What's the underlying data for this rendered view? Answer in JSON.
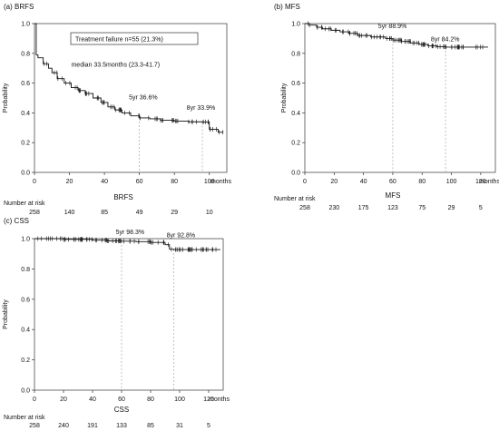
{
  "chart_data": [
    {
      "type": "line",
      "panel_label": "(a) BRFS",
      "xlabel": "BRFS",
      "x_unit": "months",
      "ylabel": "Probability",
      "xlim": [
        0,
        110
      ],
      "ylim": [
        0,
        1.0
      ],
      "xticks": [
        0,
        20,
        40,
        60,
        80,
        100
      ],
      "yticks": [
        0.0,
        0.2,
        0.4,
        0.6,
        0.8,
        1.0
      ],
      "box_text": "Treatment failure n=55   (21.3%)",
      "annotations": [
        {
          "text": "median 33.5months (23.3-41.7)",
          "x": 21,
          "y": 0.71
        },
        {
          "text": "5yr 36.6%",
          "x": 54,
          "y": 0.49
        },
        {
          "text": "8yr 33.9%",
          "x": 87,
          "y": 0.42
        }
      ],
      "reference_lines_x": [
        60,
        96
      ],
      "series": [
        {
          "x": [
            0,
            1,
            2,
            5,
            8,
            10,
            13,
            17,
            21,
            25,
            29,
            33.5,
            38,
            42,
            46,
            50,
            55,
            60,
            66,
            72,
            80,
            88,
            96,
            100,
            105,
            108
          ],
          "y": [
            1.0,
            0.79,
            0.77,
            0.73,
            0.7,
            0.67,
            0.63,
            0.6,
            0.57,
            0.55,
            0.53,
            0.5,
            0.47,
            0.44,
            0.42,
            0.4,
            0.38,
            0.366,
            0.36,
            0.35,
            0.345,
            0.34,
            0.339,
            0.29,
            0.27,
            0.27
          ]
        }
      ],
      "risk_label": "Number at risk",
      "risk_x": [
        0,
        20,
        40,
        60,
        80,
        100
      ],
      "risk": [
        "258",
        "140",
        "85",
        "49",
        "29",
        "10"
      ]
    },
    {
      "type": "line",
      "panel_label": "(b) MFS",
      "xlabel": "MFS",
      "x_unit": "months",
      "ylabel": "Probability",
      "xlim": [
        0,
        130
      ],
      "ylim": [
        0,
        1.0
      ],
      "xticks": [
        0,
        20,
        40,
        60,
        80,
        100,
        120
      ],
      "yticks": [
        0.0,
        0.2,
        0.4,
        0.6,
        0.8,
        1.0
      ],
      "annotations": [
        {
          "text": "5yr 88.9%",
          "x": 50,
          "y": 0.97
        },
        {
          "text": "8yr 84.2%",
          "x": 86,
          "y": 0.88
        }
      ],
      "reference_lines_x": [
        60,
        96
      ],
      "series": [
        {
          "x": [
            0,
            3,
            8,
            12,
            18,
            24,
            30,
            36,
            45,
            55,
            60,
            66,
            72,
            78,
            84,
            90,
            96,
            110,
            125
          ],
          "y": [
            1.0,
            0.99,
            0.975,
            0.965,
            0.955,
            0.945,
            0.935,
            0.92,
            0.91,
            0.9,
            0.889,
            0.88,
            0.87,
            0.86,
            0.85,
            0.845,
            0.842,
            0.842,
            0.842
          ]
        }
      ],
      "risk_label": "Number at risk",
      "risk_x": [
        0,
        20,
        40,
        60,
        80,
        100,
        120
      ],
      "risk": [
        "258",
        "230",
        "175",
        "123",
        "75",
        "29",
        "5"
      ]
    },
    {
      "type": "line",
      "panel_label": "(c) CSS",
      "xlabel": "CSS",
      "x_unit": "months",
      "ylabel": "Probability",
      "xlim": [
        0,
        130
      ],
      "ylim": [
        0,
        1.0
      ],
      "xticks": [
        0,
        20,
        40,
        60,
        80,
        100,
        120
      ],
      "yticks": [
        0.0,
        0.2,
        0.4,
        0.6,
        0.8,
        1.0
      ],
      "annotations": [
        {
          "text": "5yr 98.3%",
          "x": 56,
          "y": 1.03
        },
        {
          "text": "8yr 92.8%",
          "x": 91,
          "y": 1.01
        }
      ],
      "reference_lines_x": [
        60,
        96
      ],
      "series": [
        {
          "x": [
            0,
            20,
            40,
            50,
            60,
            70,
            80,
            90,
            93,
            96,
            110,
            128
          ],
          "y": [
            1.0,
            0.995,
            0.99,
            0.985,
            0.983,
            0.98,
            0.975,
            0.96,
            0.93,
            0.928,
            0.928,
            0.928
          ]
        }
      ],
      "risk_label": "Number at risk",
      "risk_x": [
        0,
        20,
        40,
        60,
        80,
        100,
        120
      ],
      "risk": [
        "258",
        "240",
        "191",
        "133",
        "85",
        "31",
        "5"
      ]
    }
  ]
}
